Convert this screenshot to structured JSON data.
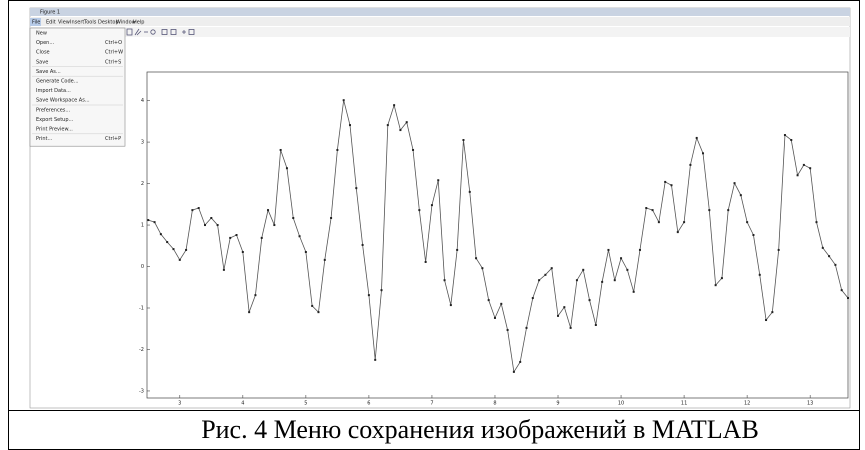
{
  "window": {
    "title": "Figure 1",
    "menu": [
      "File",
      "Edit",
      "View",
      "Insert",
      "Tools",
      "Desktop",
      "Window",
      "Help"
    ]
  },
  "file_menu": {
    "items": [
      {
        "label": "New"
      },
      {
        "label": "Open...",
        "shortcut": "Ctrl+O"
      },
      {
        "label": "Close",
        "shortcut": "Ctrl+W"
      },
      {
        "label": "Save",
        "shortcut": "Ctrl+S"
      },
      {
        "label": "Save As..."
      },
      {
        "label": "Generate Code..."
      },
      {
        "label": "Import Data..."
      },
      {
        "label": "Save Workspace As..."
      },
      {
        "label": "Preferences..."
      },
      {
        "label": "Export Setup..."
      },
      {
        "label": "Print Preview..."
      },
      {
        "label": "Print...",
        "shortcut": "Ctrl+P"
      }
    ]
  },
  "chart_data": {
    "type": "line",
    "x": [
      2.5,
      2.6,
      2.7,
      2.8,
      2.9,
      3.0,
      3.1,
      3.2,
      3.3,
      3.4,
      3.5,
      3.6,
      3.7,
      3.8,
      3.9,
      4.0,
      4.1,
      4.2,
      4.3,
      4.4,
      4.5,
      4.6,
      4.7,
      4.8,
      4.9,
      5.0,
      5.1,
      5.2,
      5.3,
      5.4,
      5.5,
      5.6,
      5.7,
      5.8,
      5.9,
      6.0,
      6.1,
      6.2,
      6.3,
      6.4,
      6.5,
      6.6,
      6.7,
      6.8,
      6.9,
      7.0,
      7.1,
      7.2,
      7.3,
      7.4,
      7.5,
      7.6,
      7.7,
      7.8,
      7.9,
      8.0,
      8.1,
      8.2,
      8.3,
      8.4,
      8.5,
      8.6,
      8.7,
      8.8,
      8.9,
      9.0,
      9.1,
      9.2,
      9.3,
      9.4,
      9.5,
      9.6,
      9.7,
      9.8,
      9.9,
      10.0,
      10.1,
      10.2,
      10.3,
      10.4,
      10.5,
      10.6,
      10.7,
      10.8,
      10.9,
      11.0,
      11.1,
      11.2,
      11.3,
      11.4,
      11.5,
      11.6,
      11.7,
      11.8,
      11.9,
      12.0,
      12.1,
      12.2,
      12.3,
      12.4,
      12.5,
      12.6,
      12.7,
      12.8,
      12.9,
      13.0,
      13.1,
      13.2,
      13.3,
      13.4,
      13.5,
      13.6
    ],
    "series": [
      {
        "color": "#555555",
        "values": [
          1.12,
          1.07,
          0.78,
          0.59,
          0.42,
          0.16,
          0.4,
          1.36,
          1.41,
          1.0,
          1.17,
          1.0,
          -0.08,
          0.69,
          0.76,
          0.35,
          -1.1,
          -0.69,
          0.69,
          1.36,
          1.0,
          2.81,
          2.37,
          1.17,
          0.73,
          0.35,
          -0.95,
          -1.1,
          0.16,
          1.17,
          2.81,
          4.01,
          3.41,
          1.89,
          0.52,
          -0.69,
          -2.25,
          -0.57,
          3.41,
          3.89,
          3.29,
          3.48,
          2.81,
          1.36,
          0.11,
          1.48,
          2.08,
          -0.33,
          -0.93,
          0.4,
          3.05,
          1.8,
          0.2,
          -0.04,
          -0.81,
          -1.24,
          -0.9,
          -1.53,
          -2.54,
          -2.3,
          -1.48,
          -0.76,
          -0.33,
          -0.2,
          -0.04,
          -1.19,
          -0.98,
          -1.48,
          -0.33,
          -0.08,
          -0.81,
          -1.41,
          -0.37,
          0.4,
          -0.33,
          0.2,
          -0.08,
          -0.61,
          0.4,
          1.41,
          1.36,
          1.07,
          2.04,
          1.96,
          0.83,
          1.07,
          2.45,
          3.1,
          2.73,
          1.36,
          -0.45,
          -0.28,
          1.36,
          2.01,
          1.72,
          1.07,
          0.76,
          -0.2,
          -1.29,
          -1.1,
          0.4,
          3.17,
          3.05,
          2.2,
          2.45,
          2.37,
          1.07,
          0.45,
          0.25,
          0.04,
          -0.57,
          -0.76
        ]
      }
    ],
    "xlim": [
      2.48,
      13.6
    ],
    "ylim": [
      -3.17,
      4.69
    ],
    "xticks": [
      3,
      4,
      5,
      6,
      7,
      8,
      9,
      10,
      11,
      12,
      13
    ],
    "yticks": [
      -3,
      -2,
      -1,
      0,
      1,
      2,
      3,
      4
    ]
  },
  "caption": "Рис. 4 Меню сохранения изображений в MATLAB"
}
